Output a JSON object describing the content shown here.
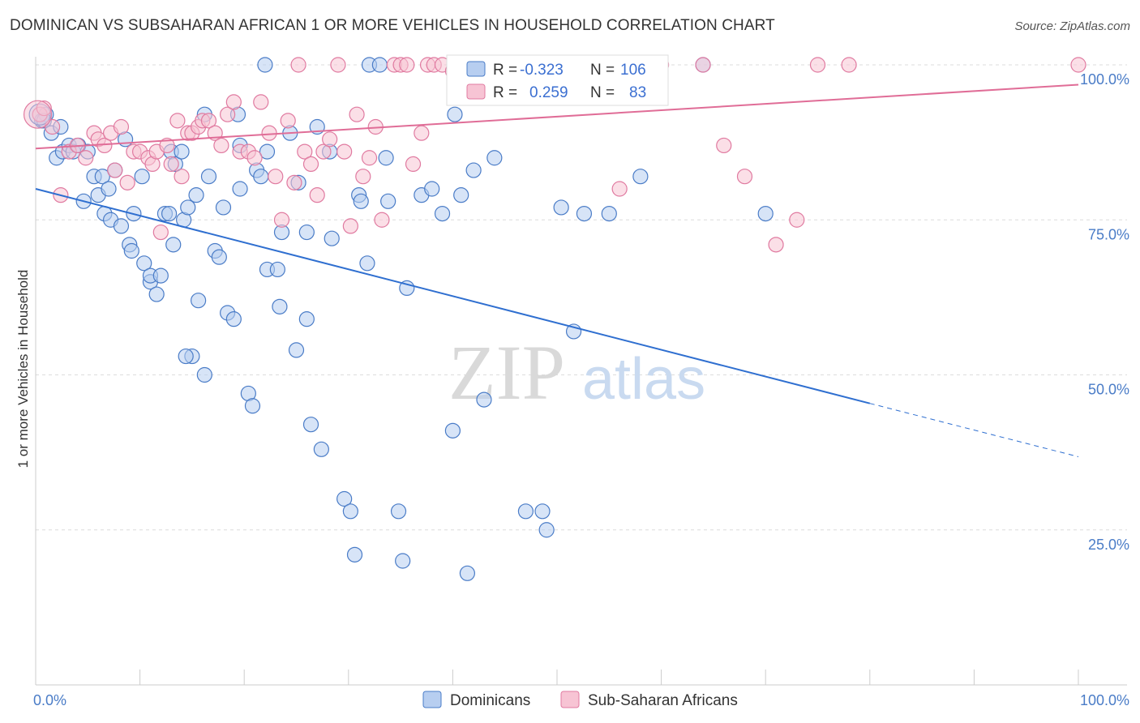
{
  "title": "DOMINICAN VS SUBSAHARAN AFRICAN 1 OR MORE VEHICLES IN HOUSEHOLD CORRELATION CHART",
  "source": "Source: ZipAtlas.com",
  "watermark": {
    "zip": "ZIP",
    "atlas": "atlas"
  },
  "colors": {
    "blue": "#4a7cc7",
    "blue_fill": "#b7cef0",
    "blue_line": "#2f6fd0",
    "pink": "#e07aa0",
    "pink_fill": "#f7c4d4",
    "pink_line": "#e06d97",
    "grid": "#dcdcdc"
  },
  "legend": {
    "rows": [
      {
        "r_label": "R =",
        "r_value": "-0.323",
        "n_label": "N =",
        "n_value": "106"
      },
      {
        "r_label": "R =",
        "r_value": "0.259",
        "n_label": "N =",
        "n_value": "83"
      }
    ]
  },
  "chart_data": {
    "type": "scatter",
    "title": "DOMINICAN VS SUBSAHARAN AFRICAN 1 OR MORE VEHICLES IN HOUSEHOLD CORRELATION CHART",
    "ylabel": "1 or more Vehicles in Household",
    "xlim": [
      0,
      100
    ],
    "ylim": [
      0,
      100
    ],
    "x_tick_labels": [
      "0.0%",
      "100.0%"
    ],
    "y_tick_labels": [
      "25.0%",
      "50.0%",
      "75.0%",
      "100.0%"
    ],
    "y_ticks": [
      25,
      50,
      75,
      100
    ],
    "grid": true,
    "series": [
      {
        "name": "Dominicans",
        "R": -0.323,
        "N": 106,
        "trend": {
          "x0": 0,
          "y0": 80.0,
          "x1": 80,
          "y1": 45.4,
          "dashed_to_x": 100,
          "dashed_to_y": 36.8
        },
        "points": [
          [
            0.6,
            91
          ],
          [
            1.0,
            92
          ],
          [
            0.8,
            91
          ],
          [
            1.5,
            89
          ],
          [
            2.4,
            90
          ],
          [
            2.0,
            85
          ],
          [
            2.6,
            86
          ],
          [
            3.2,
            87
          ],
          [
            3.6,
            86
          ],
          [
            4.1,
            87
          ],
          [
            5.0,
            86
          ],
          [
            4.6,
            78
          ],
          [
            5.6,
            82
          ],
          [
            6.0,
            79
          ],
          [
            6.4,
            82
          ],
          [
            7.0,
            80
          ],
          [
            6.6,
            76
          ],
          [
            7.2,
            75
          ],
          [
            7.6,
            83
          ],
          [
            8.2,
            74
          ],
          [
            8.6,
            88
          ],
          [
            9.4,
            76
          ],
          [
            9.0,
            71
          ],
          [
            9.2,
            70
          ],
          [
            10.2,
            82
          ],
          [
            10.4,
            68
          ],
          [
            11.0,
            65
          ],
          [
            11.0,
            66
          ],
          [
            11.6,
            63
          ],
          [
            12.0,
            66
          ],
          [
            12.4,
            76
          ],
          [
            12.8,
            76
          ],
          [
            13.2,
            71
          ],
          [
            13.0,
            86
          ],
          [
            13.4,
            84
          ],
          [
            14.0,
            86
          ],
          [
            14.2,
            75
          ],
          [
            14.6,
            77
          ],
          [
            15.4,
            79
          ],
          [
            15.6,
            62
          ],
          [
            15.0,
            53
          ],
          [
            14.4,
            53
          ],
          [
            16.2,
            50
          ],
          [
            16.2,
            92
          ],
          [
            16.6,
            82
          ],
          [
            17.2,
            70
          ],
          [
            17.6,
            69
          ],
          [
            18.0,
            77
          ],
          [
            18.4,
            60
          ],
          [
            19.0,
            59
          ],
          [
            19.6,
            87
          ],
          [
            19.4,
            92
          ],
          [
            19.6,
            80
          ],
          [
            20.4,
            47
          ],
          [
            20.8,
            45
          ],
          [
            21.2,
            83
          ],
          [
            21.6,
            82
          ],
          [
            22.2,
            86
          ],
          [
            22.2,
            67
          ],
          [
            23.2,
            67
          ],
          [
            23.4,
            61
          ],
          [
            23.6,
            73
          ],
          [
            24.4,
            89
          ],
          [
            25.0,
            54
          ],
          [
            25.2,
            81
          ],
          [
            26.0,
            73
          ],
          [
            26.4,
            42
          ],
          [
            26.0,
            59
          ],
          [
            27.0,
            90
          ],
          [
            27.4,
            38
          ],
          [
            28.2,
            86
          ],
          [
            28.4,
            72
          ],
          [
            29.6,
            30
          ],
          [
            30.2,
            28
          ],
          [
            30.6,
            21
          ],
          [
            31.0,
            79
          ],
          [
            31.2,
            78
          ],
          [
            31.8,
            68
          ],
          [
            32.0,
            100
          ],
          [
            33.0,
            100
          ],
          [
            33.6,
            85
          ],
          [
            33.8,
            78
          ],
          [
            34.8,
            28
          ],
          [
            35.2,
            20
          ],
          [
            35.6,
            64
          ],
          [
            37.0,
            79
          ],
          [
            38.0,
            80
          ],
          [
            39.0,
            76
          ],
          [
            40.0,
            41
          ],
          [
            40.2,
            92
          ],
          [
            40.8,
            79
          ],
          [
            41.4,
            18
          ],
          [
            42.0,
            83
          ],
          [
            43.0,
            46
          ],
          [
            44.0,
            85
          ],
          [
            47.0,
            28
          ],
          [
            48.6,
            28
          ],
          [
            49.0,
            25
          ],
          [
            50.4,
            77
          ],
          [
            51.6,
            57
          ],
          [
            52.6,
            76
          ],
          [
            55.0,
            76
          ],
          [
            58.0,
            82
          ],
          [
            64.0,
            100
          ],
          [
            70.0,
            76
          ],
          [
            22.0,
            100
          ]
        ]
      },
      {
        "name": "Sub-Saharan Africans",
        "R": 0.259,
        "N": 83,
        "trend": {
          "x0": 0,
          "y0": 86.5,
          "x1": 100,
          "y1": 96.8
        },
        "points": [
          [
            0.4,
            92
          ],
          [
            0.8,
            93
          ],
          [
            1.6,
            90
          ],
          [
            2.4,
            79
          ],
          [
            3.2,
            86
          ],
          [
            4.0,
            87
          ],
          [
            4.8,
            85
          ],
          [
            5.6,
            89
          ],
          [
            6.0,
            88
          ],
          [
            6.6,
            87
          ],
          [
            7.2,
            89
          ],
          [
            7.6,
            83
          ],
          [
            8.2,
            90
          ],
          [
            8.8,
            81
          ],
          [
            9.4,
            86
          ],
          [
            10.0,
            86
          ],
          [
            10.8,
            85
          ],
          [
            11.2,
            84
          ],
          [
            11.6,
            86
          ],
          [
            12.0,
            73
          ],
          [
            12.6,
            87
          ],
          [
            13.0,
            84
          ],
          [
            13.6,
            91
          ],
          [
            14.0,
            82
          ],
          [
            14.6,
            89
          ],
          [
            15.0,
            89
          ],
          [
            15.6,
            90
          ],
          [
            16.0,
            91
          ],
          [
            16.6,
            91
          ],
          [
            17.2,
            89
          ],
          [
            17.8,
            87
          ],
          [
            18.4,
            92
          ],
          [
            19.0,
            94
          ],
          [
            19.6,
            86
          ],
          [
            20.4,
            86
          ],
          [
            21.0,
            85
          ],
          [
            21.6,
            94
          ],
          [
            22.4,
            89
          ],
          [
            23.0,
            82
          ],
          [
            23.6,
            75
          ],
          [
            24.2,
            91
          ],
          [
            24.8,
            81
          ],
          [
            25.2,
            100
          ],
          [
            25.8,
            86
          ],
          [
            26.4,
            84
          ],
          [
            27.0,
            79
          ],
          [
            27.6,
            86
          ],
          [
            28.2,
            88
          ],
          [
            29.0,
            100
          ],
          [
            29.6,
            86
          ],
          [
            30.2,
            74
          ],
          [
            30.8,
            92
          ],
          [
            31.4,
            82
          ],
          [
            32.0,
            85
          ],
          [
            32.6,
            90
          ],
          [
            33.2,
            75
          ],
          [
            34.4,
            100
          ],
          [
            35.0,
            100
          ],
          [
            35.6,
            100
          ],
          [
            36.2,
            84
          ],
          [
            37.0,
            89
          ],
          [
            37.6,
            100
          ],
          [
            38.2,
            100
          ],
          [
            39.0,
            100
          ],
          [
            40.0,
            99
          ],
          [
            41.0,
            100
          ],
          [
            42.0,
            95
          ],
          [
            43.0,
            100
          ],
          [
            44.0,
            100
          ],
          [
            47.0,
            100
          ],
          [
            48.0,
            95
          ],
          [
            51.0,
            99
          ],
          [
            53.0,
            100
          ],
          [
            56.0,
            80
          ],
          [
            60.0,
            100
          ],
          [
            64.0,
            100
          ],
          [
            66.0,
            87
          ],
          [
            68.0,
            82
          ],
          [
            71.0,
            71
          ],
          [
            73.0,
            75
          ],
          [
            75.0,
            100
          ],
          [
            78.0,
            100
          ],
          [
            100.0,
            100
          ]
        ]
      }
    ]
  }
}
